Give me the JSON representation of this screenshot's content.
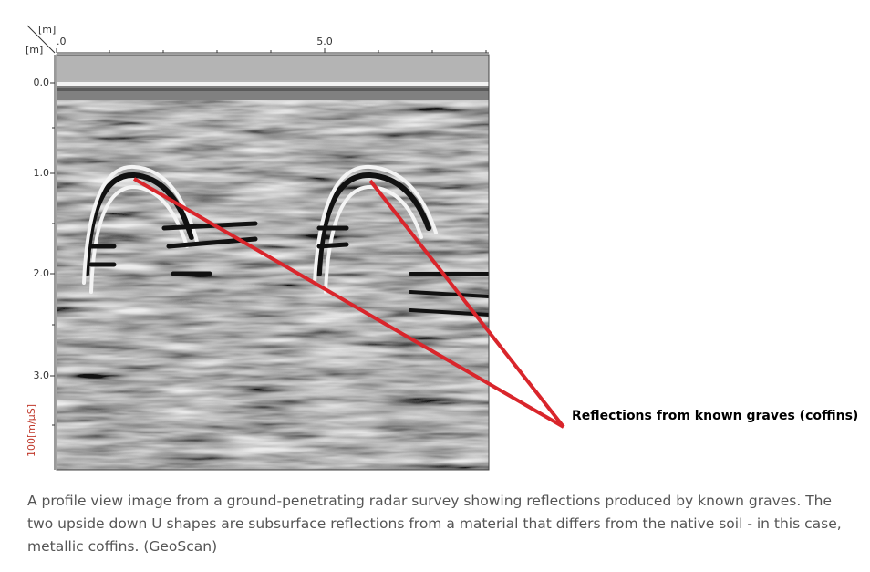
{
  "figure": {
    "x_axis_unit": "[m]",
    "y_axis_unit": "[m]",
    "x_tick_labels": [
      ".0",
      "5.0"
    ],
    "y_tick_labels": [
      "0.0",
      "1.0",
      "2.0",
      "3.0"
    ],
    "velocity_label": "100[m/μS]",
    "annotation": "Reflections from known graves (coffins)"
  },
  "caption": "A profile view image from a ground-penetrating radar survey showing reflections produced by known graves. The two upside down U shapes are subsurface reflections from a material that differs from the native soil - in this case, metallic coffins. (GeoScan)"
}
